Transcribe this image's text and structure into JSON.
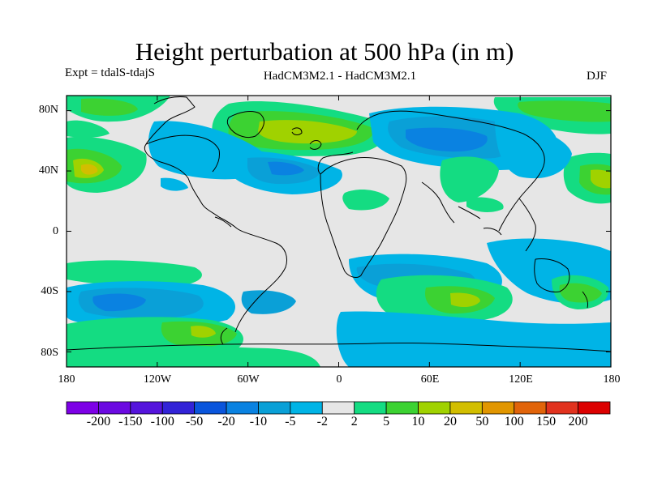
{
  "title": "Height perturbation at 500 hPa (in m)",
  "experiment": "Expt = tdalS-tdajS",
  "models": "HadCM3M2.1 - HadCM3M2.1",
  "season": "DJF",
  "map": {
    "projection": "cylindrical-equidistant",
    "lon_range": [
      -180,
      180
    ],
    "lat_range": [
      -90,
      90
    ],
    "lat_ticks": [
      {
        "value": 80,
        "label": "80N"
      },
      {
        "value": 40,
        "label": "40N"
      },
      {
        "value": 0,
        "label": "0"
      },
      {
        "value": -40,
        "label": "40S"
      },
      {
        "value": -80,
        "label": "80S"
      }
    ],
    "lon_ticks": [
      {
        "value": -180,
        "label": "180"
      },
      {
        "value": -120,
        "label": "120W"
      },
      {
        "value": -60,
        "label": "60W"
      },
      {
        "value": 0,
        "label": "0"
      },
      {
        "value": 60,
        "label": "60E"
      },
      {
        "value": 120,
        "label": "120E"
      },
      {
        "value": 180,
        "label": "180"
      }
    ],
    "background_class_color": "#e6e6e6"
  },
  "colorbar": {
    "colors": [
      "#7d00e6",
      "#6b0ae1",
      "#5514dc",
      "#3223d7",
      "#0a55dc",
      "#0a82e1",
      "#0aa0d7",
      "#00b4e6",
      "#e6e6e6",
      "#14dc82",
      "#3cd232",
      "#a0d200",
      "#d2be00",
      "#e19600",
      "#e1640a",
      "#e1321e",
      "#dc0000"
    ],
    "labels": [
      "-200",
      "-150",
      "-100",
      "-50",
      "-20",
      "-10",
      "-5",
      "-2",
      "2",
      "5",
      "10",
      "20",
      "50",
      "100",
      "150",
      "200"
    ]
  }
}
